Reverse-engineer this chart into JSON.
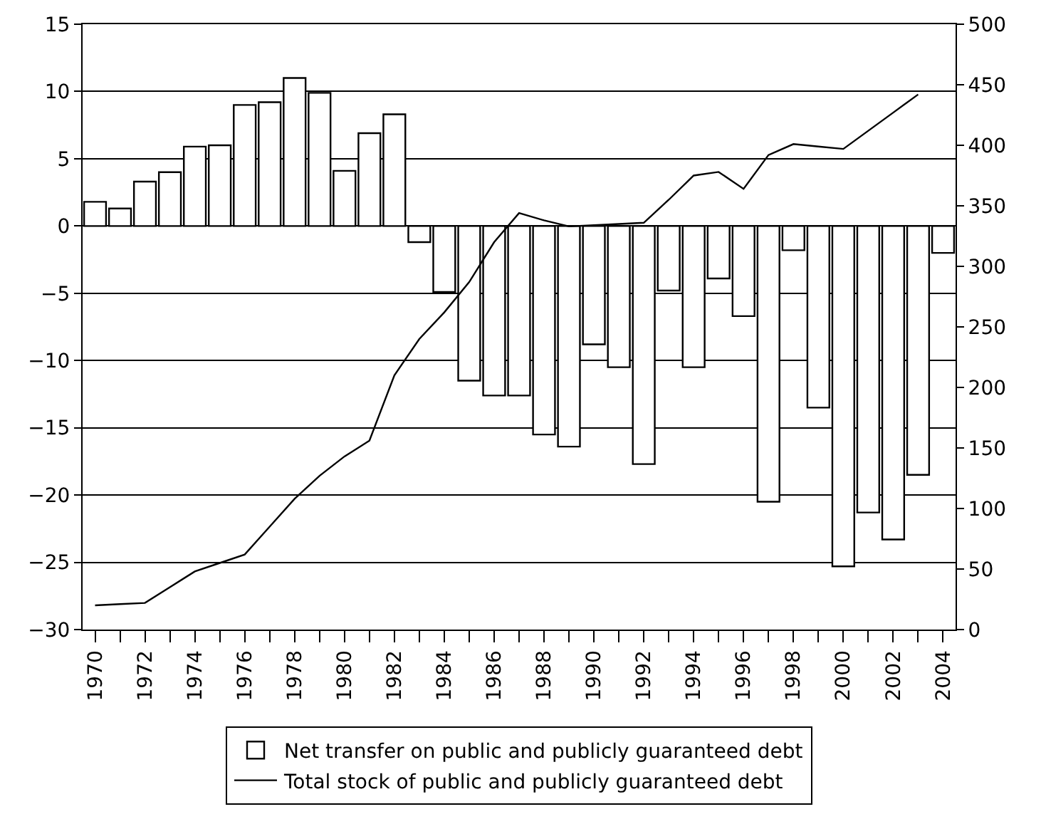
{
  "chart_data": {
    "type": "bar",
    "categories": [
      "1970",
      null,
      "1972",
      null,
      "1974",
      null,
      "1976",
      null,
      "1978",
      null,
      "1980",
      null,
      "1982",
      null,
      "1984",
      null,
      "1986",
      null,
      "1988",
      null,
      "1990",
      null,
      "1992",
      null,
      "1994",
      null,
      "1996",
      null,
      "1998",
      null,
      "2000",
      null,
      "2002",
      null,
      "2004"
    ],
    "series": [
      {
        "name": "Net transfer on public and publicly guaranteed debt",
        "color": "#ffffff",
        "values": [
          1.8,
          1.3,
          3.3,
          4.0,
          5.9,
          6.0,
          9.0,
          9.2,
          11.0,
          9.9,
          4.1,
          6.9,
          8.3,
          -1.2,
          -4.9,
          -11.5,
          -12.6,
          -12.6,
          -15.5,
          -16.4,
          -8.8,
          -10.5,
          -17.7,
          -4.8,
          -10.5,
          -3.9,
          -6.7,
          -20.5,
          -1.8,
          -13.5,
          -25.3,
          -21.3,
          -23.3,
          -18.5,
          -2.0
        ]
      },
      {
        "name": "Total stock of public and publicly guaranteed debt",
        "type": "line",
        "axis": "y2",
        "color": "#000000",
        "values": [
          20,
          21,
          22,
          35,
          48,
          55,
          62,
          85,
          108,
          127,
          143,
          156,
          210,
          240,
          262,
          287,
          320,
          344,
          338,
          333,
          334,
          335,
          336,
          355,
          375,
          378,
          364,
          392,
          401,
          399,
          397,
          412,
          427,
          442,
          null
        ]
      }
    ],
    "ylim": [
      -30,
      15
    ],
    "yticks": [
      -30,
      -25,
      -20,
      -15,
      -10,
      -5,
      0,
      5,
      10,
      15
    ],
    "y2lim": [
      0,
      500
    ],
    "y2ticks": [
      0,
      50,
      100,
      150,
      200,
      250,
      300,
      350,
      400,
      450,
      500
    ],
    "grid": "y",
    "legend": "bottom",
    "marker": "none",
    "line_style": "solid"
  }
}
